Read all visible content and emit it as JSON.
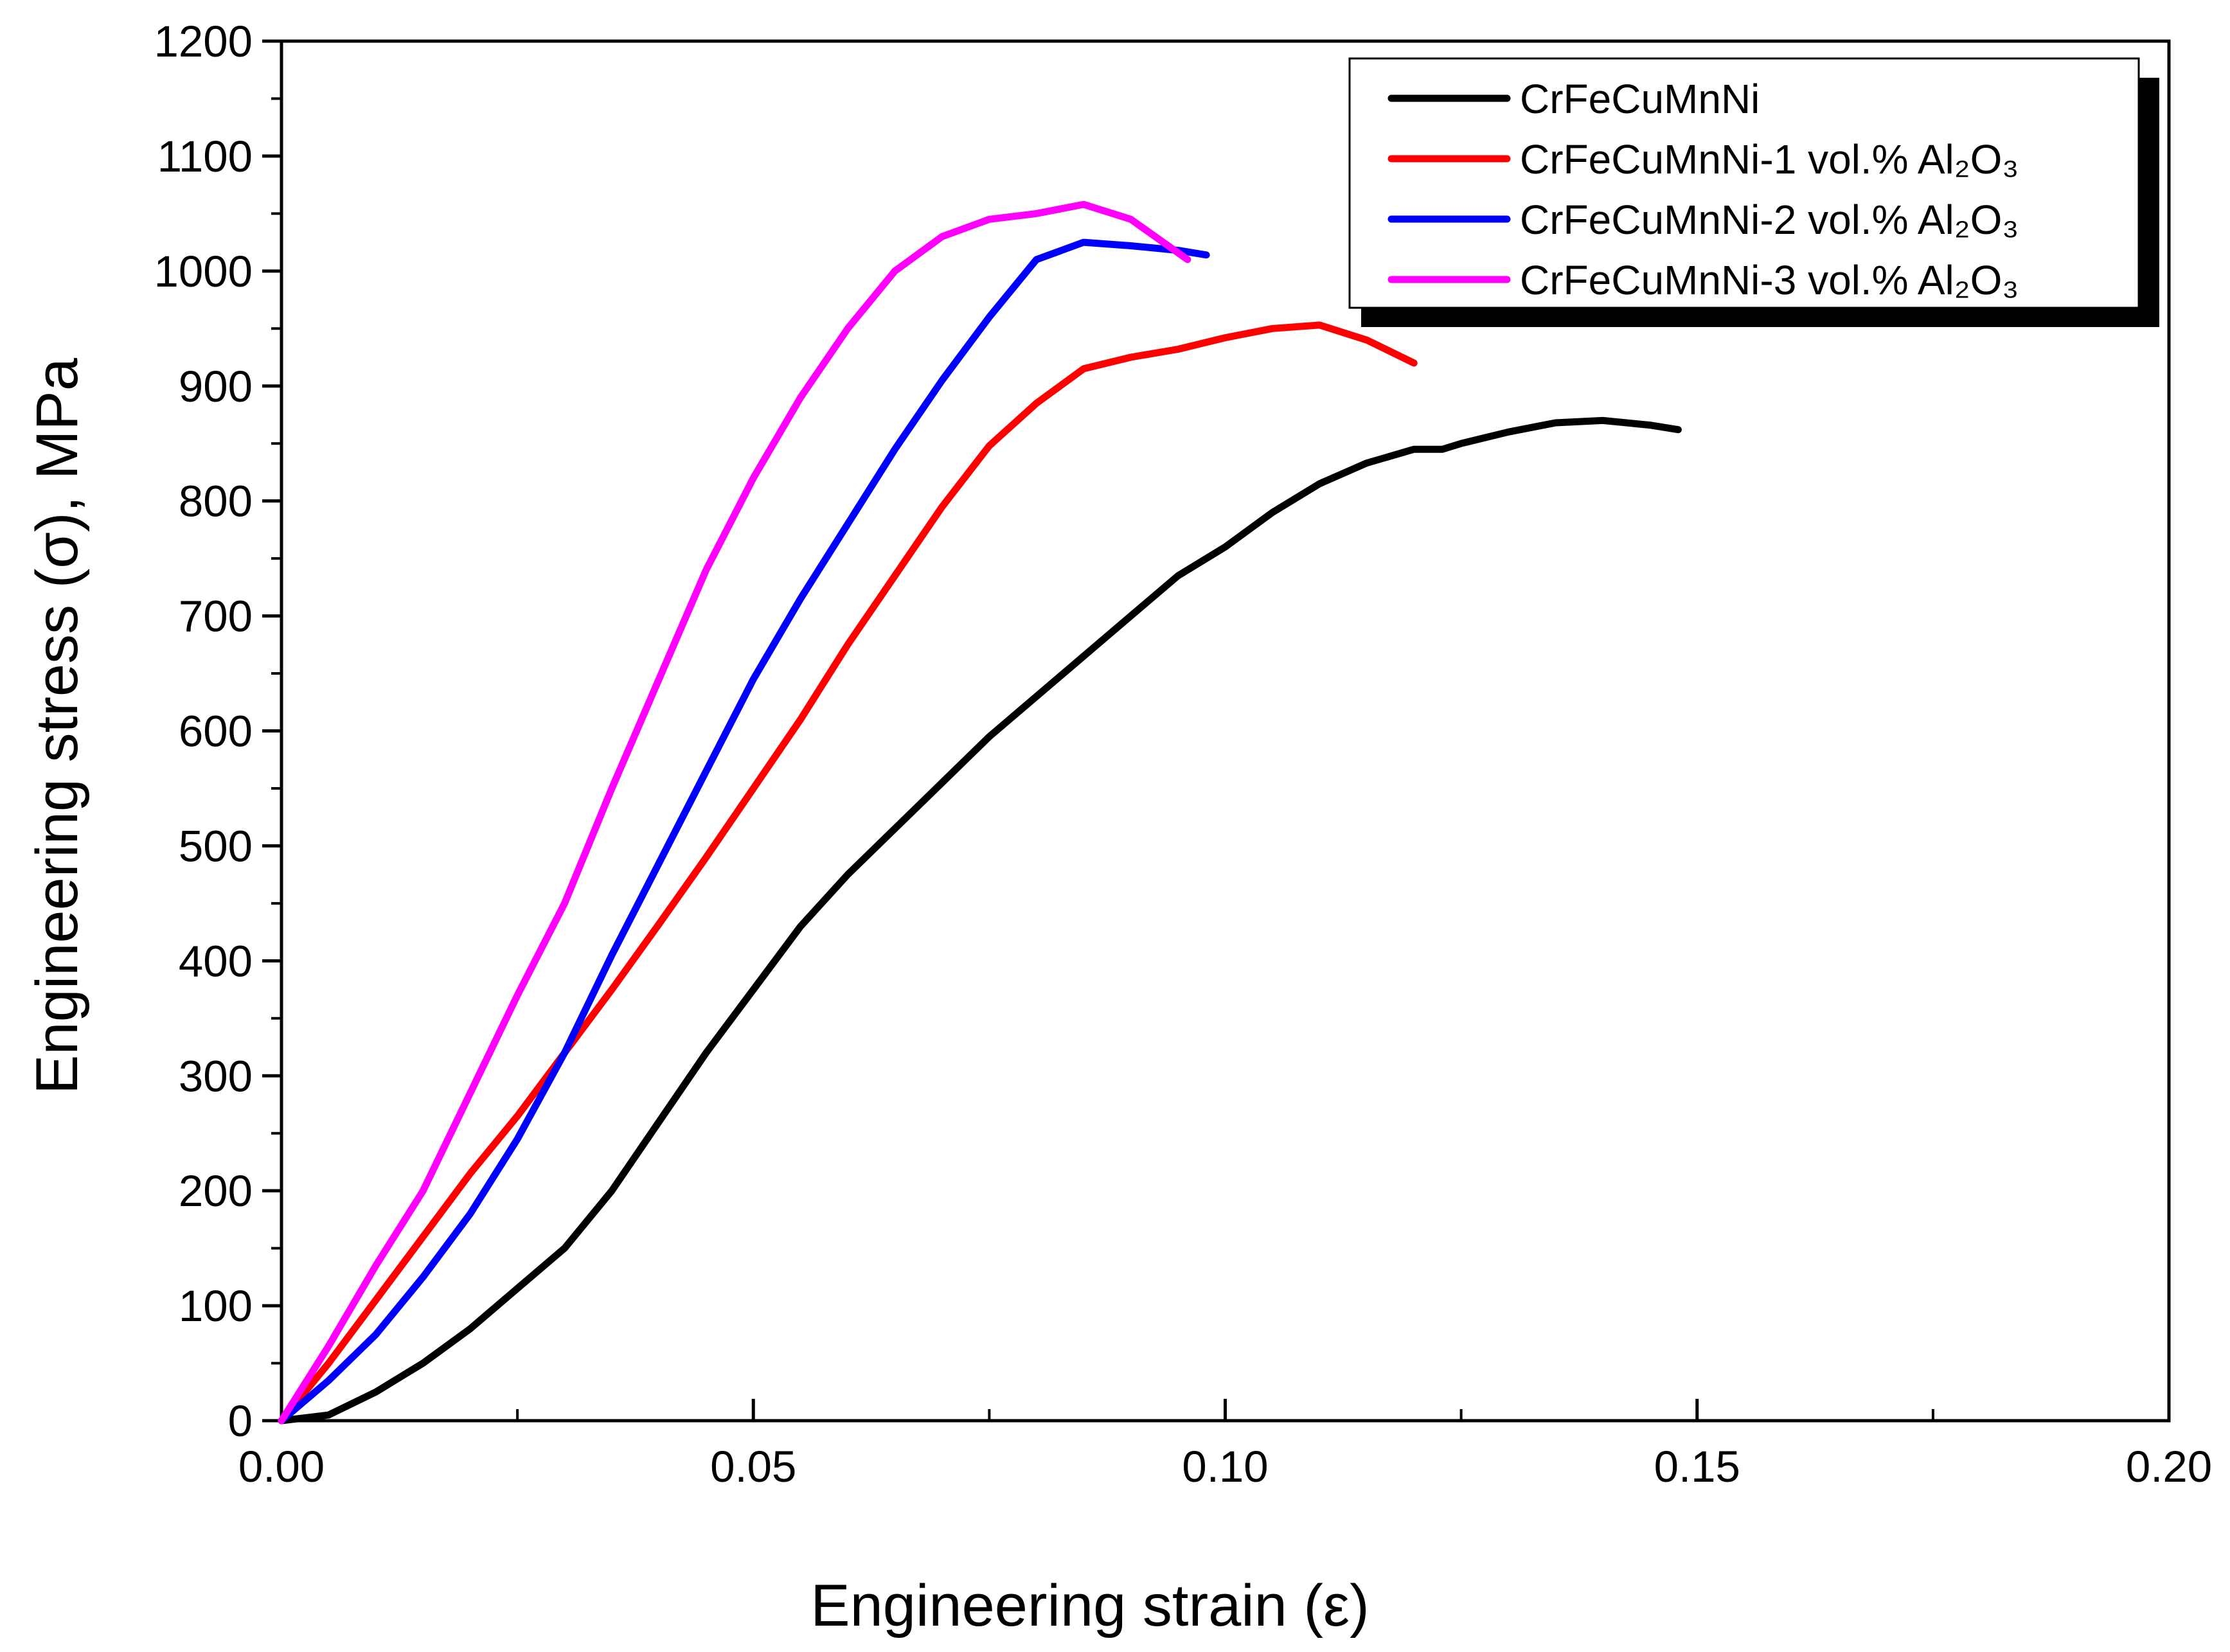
{
  "chart_data": {
    "type": "line",
    "title": "",
    "xlabel": "Engineering strain (ε)",
    "ylabel": "Engineering stress (σ), MPa",
    "xlim": [
      0,
      0.2
    ],
    "ylim": [
      0,
      1200
    ],
    "xticks": [
      0.0,
      0.05,
      0.1,
      0.15,
      0.2
    ],
    "xtick_labels": [
      "0.00",
      "0.05",
      "0.10",
      "0.15",
      "0.20"
    ],
    "yticks": [
      0,
      100,
      200,
      300,
      400,
      500,
      600,
      700,
      800,
      900,
      1000,
      1100,
      1200
    ],
    "ytick_labels": [
      "0",
      "100",
      "200",
      "300",
      "400",
      "500",
      "600",
      "700",
      "800",
      "900",
      "1000",
      "1100",
      "1200"
    ],
    "grid": false,
    "legend_position": "top-right",
    "series": [
      {
        "name": "CrFeCuMnNi",
        "color": "#000000",
        "points": [
          [
            0,
            0
          ],
          [
            0.005,
            5
          ],
          [
            0.01,
            25
          ],
          [
            0.015,
            50
          ],
          [
            0.02,
            80
          ],
          [
            0.025,
            115
          ],
          [
            0.03,
            150
          ],
          [
            0.035,
            200
          ],
          [
            0.04,
            260
          ],
          [
            0.045,
            320
          ],
          [
            0.05,
            375
          ],
          [
            0.055,
            430
          ],
          [
            0.06,
            475
          ],
          [
            0.065,
            515
          ],
          [
            0.07,
            555
          ],
          [
            0.075,
            595
          ],
          [
            0.08,
            630
          ],
          [
            0.085,
            665
          ],
          [
            0.09,
            700
          ],
          [
            0.095,
            735
          ],
          [
            0.1,
            760
          ],
          [
            0.105,
            790
          ],
          [
            0.11,
            815
          ],
          [
            0.115,
            833
          ],
          [
            0.12,
            845
          ],
          [
            0.123,
            845
          ],
          [
            0.125,
            850
          ],
          [
            0.13,
            860
          ],
          [
            0.135,
            868
          ],
          [
            0.14,
            870
          ],
          [
            0.145,
            866
          ],
          [
            0.148,
            862
          ]
        ]
      },
      {
        "name": "CrFeCuMnNi-1 vol.% Al₂O₃",
        "color": "#ff0000",
        "points": [
          [
            0,
            0
          ],
          [
            0.005,
            50
          ],
          [
            0.01,
            105
          ],
          [
            0.015,
            160
          ],
          [
            0.02,
            215
          ],
          [
            0.025,
            265
          ],
          [
            0.03,
            320
          ],
          [
            0.035,
            375
          ],
          [
            0.04,
            432
          ],
          [
            0.045,
            490
          ],
          [
            0.05,
            550
          ],
          [
            0.055,
            610
          ],
          [
            0.06,
            675
          ],
          [
            0.065,
            735
          ],
          [
            0.07,
            795
          ],
          [
            0.075,
            848
          ],
          [
            0.08,
            885
          ],
          [
            0.085,
            915
          ],
          [
            0.09,
            925
          ],
          [
            0.095,
            932
          ],
          [
            0.1,
            942
          ],
          [
            0.105,
            950
          ],
          [
            0.11,
            953
          ],
          [
            0.115,
            940
          ],
          [
            0.12,
            920
          ]
        ]
      },
      {
        "name": "CrFeCuMnNi-2 vol.% Al₂O₃",
        "color": "#0000ff",
        "points": [
          [
            0,
            0
          ],
          [
            0.005,
            35
          ],
          [
            0.01,
            75
          ],
          [
            0.015,
            125
          ],
          [
            0.02,
            180
          ],
          [
            0.025,
            245
          ],
          [
            0.03,
            320
          ],
          [
            0.035,
            405
          ],
          [
            0.04,
            485
          ],
          [
            0.045,
            565
          ],
          [
            0.05,
            645
          ],
          [
            0.055,
            715
          ],
          [
            0.06,
            780
          ],
          [
            0.065,
            845
          ],
          [
            0.07,
            905
          ],
          [
            0.075,
            960
          ],
          [
            0.08,
            1010
          ],
          [
            0.085,
            1025
          ],
          [
            0.09,
            1022
          ],
          [
            0.095,
            1018
          ],
          [
            0.098,
            1014
          ]
        ]
      },
      {
        "name": "CrFeCuMnNi-3 vol.% Al₂O₃",
        "color": "#ff00ff",
        "points": [
          [
            0,
            0
          ],
          [
            0.005,
            65
          ],
          [
            0.01,
            135
          ],
          [
            0.015,
            200
          ],
          [
            0.02,
            285
          ],
          [
            0.025,
            370
          ],
          [
            0.03,
            450
          ],
          [
            0.035,
            550
          ],
          [
            0.04,
            645
          ],
          [
            0.045,
            740
          ],
          [
            0.05,
            820
          ],
          [
            0.055,
            890
          ],
          [
            0.06,
            950
          ],
          [
            0.065,
            1000
          ],
          [
            0.07,
            1030
          ],
          [
            0.075,
            1045
          ],
          [
            0.08,
            1050
          ],
          [
            0.085,
            1058
          ],
          [
            0.09,
            1045
          ],
          [
            0.096,
            1010
          ]
        ]
      }
    ]
  }
}
